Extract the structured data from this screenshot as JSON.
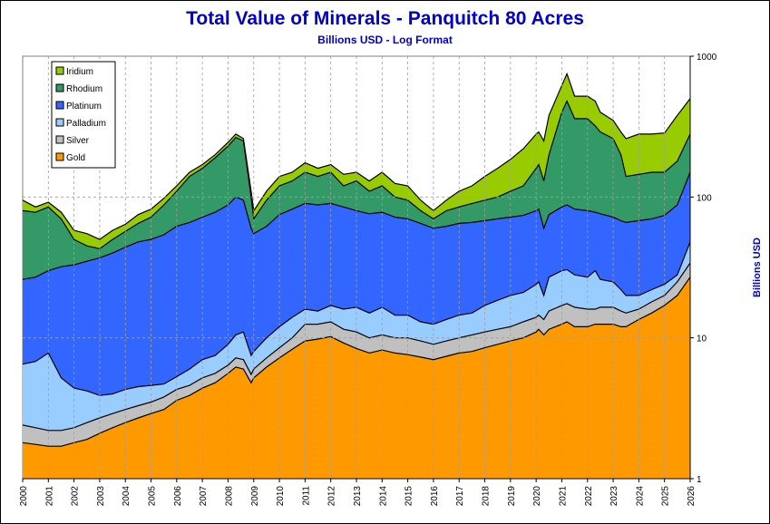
{
  "chart_data": {
    "type": "area",
    "title": "Total Value of Minerals - Panquitch 80 Acres",
    "subtitle": "Billions USD - Log Format",
    "ylabel": "Billions USD",
    "xlabel": "",
    "yscale": "log",
    "ylim": [
      1,
      1000
    ],
    "y_ticks": [
      "1",
      "10",
      "100",
      "1000"
    ],
    "xlim": [
      2000,
      2026
    ],
    "x_ticks": [
      "2000",
      "2001",
      "2002",
      "2003",
      "2004",
      "2005",
      "2006",
      "2007",
      "2008",
      "2009",
      "2010",
      "2011",
      "2012",
      "2013",
      "2014",
      "2015",
      "2016",
      "2017",
      "2018",
      "2019",
      "2020",
      "2021",
      "2022",
      "2023",
      "2024",
      "2025",
      "2026"
    ],
    "grid": "dashed",
    "legend_position": "top-left",
    "stacked": true,
    "x": [
      2000,
      2000.5,
      2001,
      2001.5,
      2002,
      2002.5,
      2003,
      2003.5,
      2004,
      2004.5,
      2005,
      2005.5,
      2006,
      2006.5,
      2007,
      2007.5,
      2008,
      2008.3,
      2008.6,
      2008.9,
      2009,
      2009.5,
      2010,
      2010.5,
      2011,
      2011.5,
      2012,
      2012.5,
      2013,
      2013.5,
      2014,
      2014.5,
      2015,
      2015.5,
      2016,
      2016.5,
      2017,
      2017.5,
      2018,
      2018.5,
      2019,
      2019.5,
      2020,
      2020.1,
      2020.3,
      2020.5,
      2021,
      2021.2,
      2021.5,
      2022,
      2022.3,
      2022.5,
      2023,
      2023.3,
      2023.5,
      2024,
      2024.5,
      2025,
      2025.5,
      2026
    ],
    "series": [
      {
        "name": "Iridium",
        "color": "#99cc00",
        "cumulative": [
          95,
          85,
          92,
          78,
          58,
          55,
          50,
          58,
          64,
          75,
          82,
          98,
          120,
          150,
          170,
          200,
          245,
          280,
          260,
          110,
          80,
          110,
          140,
          150,
          175,
          160,
          170,
          145,
          150,
          130,
          150,
          125,
          120,
          95,
          80,
          95,
          110,
          120,
          140,
          160,
          185,
          220,
          280,
          290,
          250,
          380,
          620,
          750,
          520,
          520,
          480,
          400,
          350,
          290,
          260,
          280,
          280,
          285,
          380,
          500
        ]
      },
      {
        "name": "Rhodium",
        "color": "#339966",
        "cumulative": [
          80,
          78,
          85,
          70,
          50,
          45,
          43,
          50,
          57,
          65,
          72,
          88,
          110,
          140,
          160,
          190,
          230,
          265,
          250,
          100,
          70,
          95,
          120,
          130,
          150,
          140,
          150,
          120,
          130,
          110,
          120,
          100,
          95,
          80,
          70,
          80,
          85,
          90,
          95,
          100,
          110,
          120,
          160,
          170,
          130,
          200,
          400,
          480,
          360,
          360,
          320,
          290,
          260,
          200,
          140,
          145,
          150,
          150,
          180,
          280
        ]
      },
      {
        "name": "Platinum",
        "color": "#3366ff",
        "cumulative": [
          26,
          27,
          30,
          32,
          33,
          35,
          37,
          40,
          44,
          48,
          50,
          54,
          62,
          66,
          72,
          78,
          88,
          100,
          95,
          60,
          55,
          62,
          75,
          82,
          90,
          88,
          90,
          85,
          80,
          76,
          78,
          72,
          70,
          65,
          60,
          62,
          65,
          66,
          68,
          70,
          72,
          74,
          80,
          82,
          60,
          75,
          85,
          88,
          82,
          80,
          78,
          76,
          72,
          68,
          66,
          68,
          70,
          74,
          88,
          150
        ]
      },
      {
        "name": "Palladium",
        "color": "#99ccff",
        "cumulative": [
          6.5,
          6.8,
          7.8,
          5.2,
          4.4,
          4.2,
          3.9,
          4.0,
          4.3,
          4.5,
          4.6,
          4.7,
          5.3,
          6.0,
          7.0,
          7.5,
          9.0,
          10.5,
          11.0,
          7.5,
          8.0,
          10.0,
          12.0,
          14.0,
          16.0,
          15.5,
          17.0,
          16.0,
          16.5,
          15.0,
          16.5,
          14.5,
          14.5,
          13.0,
          12.5,
          13.5,
          14.5,
          15.0,
          17.0,
          18.5,
          20.0,
          21.0,
          24.0,
          25.0,
          20.0,
          27.0,
          30.0,
          30.5,
          28.0,
          27.0,
          30.0,
          26.0,
          25.0,
          22.0,
          20.0,
          20.0,
          22.0,
          24.0,
          28.0,
          48.0
        ]
      },
      {
        "name": "Silver",
        "color": "#c0c0c0",
        "cumulative": [
          2.4,
          2.3,
          2.2,
          2.2,
          2.3,
          2.5,
          2.7,
          2.9,
          3.1,
          3.3,
          3.5,
          3.8,
          4.3,
          4.6,
          5.2,
          5.6,
          6.4,
          7.2,
          7.0,
          5.5,
          6.0,
          7.2,
          8.5,
          10.0,
          12.5,
          12.5,
          13.0,
          11.5,
          11.0,
          10.0,
          10.5,
          10.0,
          10.0,
          9.5,
          9.0,
          9.5,
          10.0,
          10.5,
          11.0,
          11.5,
          12.0,
          13.0,
          14.0,
          14.5,
          13.5,
          15.5,
          17.0,
          17.5,
          16.5,
          16.0,
          16.0,
          16.5,
          16.5,
          15.5,
          15.0,
          16.0,
          18.0,
          20.0,
          25.0,
          34.0
        ]
      },
      {
        "name": "Gold",
        "color": "#ff9900",
        "cumulative": [
          1.8,
          1.75,
          1.7,
          1.7,
          1.8,
          1.9,
          2.1,
          2.3,
          2.5,
          2.7,
          2.9,
          3.1,
          3.6,
          3.9,
          4.4,
          4.8,
          5.6,
          6.2,
          6.0,
          4.8,
          5.2,
          6.2,
          7.2,
          8.3,
          9.5,
          9.8,
          10.2,
          9.2,
          8.4,
          7.8,
          8.2,
          7.8,
          7.6,
          7.3,
          7.0,
          7.4,
          7.8,
          8.0,
          8.5,
          9.0,
          9.5,
          10.0,
          11.0,
          11.5,
          10.5,
          11.5,
          12.5,
          13.0,
          12.0,
          12.0,
          12.5,
          12.5,
          12.5,
          12.0,
          12.0,
          13.5,
          15.0,
          17.0,
          20.0,
          27.0
        ]
      }
    ]
  }
}
